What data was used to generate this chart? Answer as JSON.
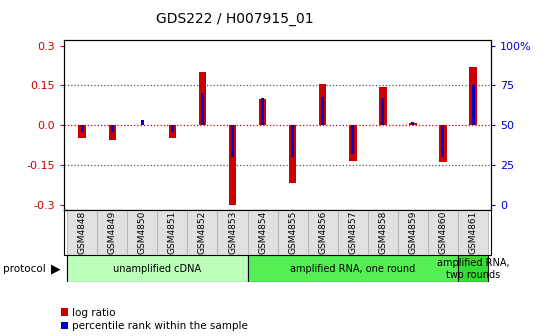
{
  "title": "GDS222 / H007915_01",
  "samples": [
    "GSM4848",
    "GSM4849",
    "GSM4850",
    "GSM4851",
    "GSM4852",
    "GSM4853",
    "GSM4854",
    "GSM4855",
    "GSM4856",
    "GSM4857",
    "GSM4858",
    "GSM4859",
    "GSM4860",
    "GSM4861"
  ],
  "log_ratio": [
    -0.05,
    -0.055,
    0.0,
    -0.05,
    0.2,
    -0.3,
    0.1,
    -0.22,
    0.155,
    -0.135,
    0.145,
    0.01,
    -0.14,
    0.22
  ],
  "percentile": [
    46,
    46,
    53,
    46,
    70,
    30,
    67,
    30,
    68,
    32,
    67,
    52,
    30,
    75
  ],
  "protocols": [
    {
      "label": "unamplified cDNA",
      "start": 0,
      "end": 6,
      "color": "#bbffbb"
    },
    {
      "label": "amplified RNA, one round",
      "start": 6,
      "end": 13,
      "color": "#55ee55"
    },
    {
      "label": "amplified RNA,\ntwo rounds",
      "start": 13,
      "end": 14,
      "color": "#33dd33"
    }
  ],
  "ylim": [
    -0.32,
    0.32
  ],
  "yticks_left": [
    -0.3,
    -0.15,
    0.0,
    0.15,
    0.3
  ],
  "yticks_right": [
    0,
    25,
    50,
    75,
    100
  ],
  "bar_width": 0.25,
  "pct_bar_width": 0.1,
  "log_color": "#cc0000",
  "pct_color": "#0000cc",
  "bg_color": "#ffffff",
  "tick_label_color_left": "#cc0000",
  "tick_label_color_right": "#0000cc",
  "grid_color": "#555555",
  "zero_line_color": "#cc0000"
}
